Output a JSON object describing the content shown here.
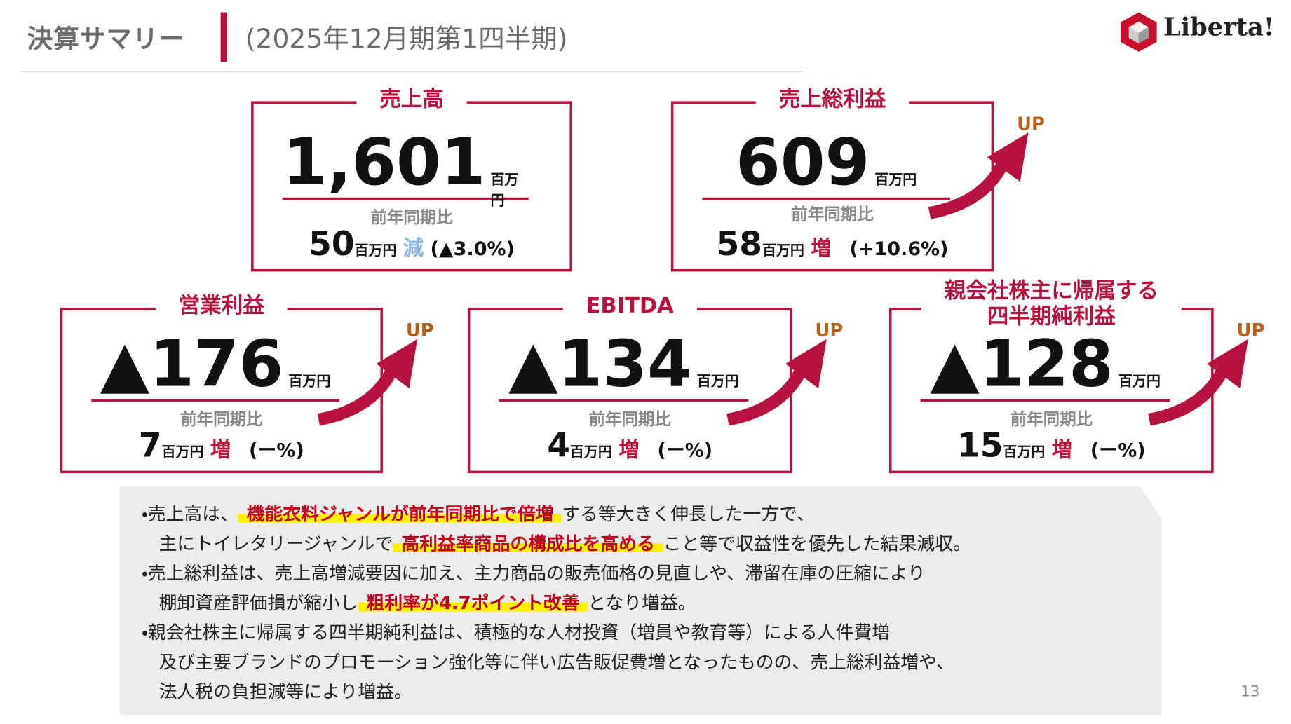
{
  "header": {
    "title": "決算サマリー",
    "subtitle": "(2025年12月期第1四半期)",
    "logo": "Liberta!"
  },
  "cards": [
    {
      "label": "売上高",
      "value": "1,601",
      "unit": "百万円",
      "compare_label": "前年同期比",
      "change": "50",
      "change_unit": "百万円",
      "direction": "減",
      "rate": "(▲3.0%)"
    },
    {
      "label": "売上総利益",
      "value": "609",
      "unit": "百万円",
      "compare_label": "前年同期比",
      "change": "58",
      "change_unit": "百万円",
      "direction": "増",
      "rate": "(+10.6%)",
      "badge": "UP"
    },
    {
      "label": "営業利益",
      "value": "▲176",
      "unit": "百万円",
      "compare_label": "前年同期比",
      "change": "7",
      "change_unit": "百万円",
      "direction": "増",
      "rate": "(ー%)",
      "badge": "UP"
    },
    {
      "label": "EBITDA",
      "value": "▲134",
      "unit": "百万円",
      "compare_label": "前年同期比",
      "change": "4",
      "change_unit": "百万円",
      "direction": "増",
      "rate": "(ー%)",
      "badge": "UP"
    },
    {
      "label": [
        "親会社株主に帰属する",
        "四半期純利益"
      ],
      "value": "▲128",
      "unit": "百万円",
      "compare_label": "前年同期比",
      "change": "15",
      "change_unit": "百万円",
      "direction": "増",
      "rate": "(ー%)",
      "badge": "UP"
    }
  ],
  "notes": [
    [
      [
        {
          "text": "・売上高は、"
        },
        {
          "text": "機能衣料ジャンルが前年同期比で倍増",
          "highlight": true
        },
        {
          "text": "する等大きく伸長した一方で、"
        }
      ],
      [
        {
          "text": "主にトイレタリージャンルで"
        },
        {
          "text": "高利益率商品の構成比を高める",
          "highlight": true
        },
        {
          "text": "こと等で収益性を優先した結果減収。"
        }
      ]
    ],
    [
      [
        {
          "text": "・売上総利益は、売上高増減要因に加え、主力商品の販売価格の見直しや、滞留在庫の圧縮により"
        }
      ],
      [
        {
          "text": "棚卸資産評価損が縮小し"
        },
        {
          "text": "粗利率が4.7ポイント改善",
          "highlight": true
        },
        {
          "text": "となり増益。"
        }
      ]
    ],
    [
      [
        {
          "text": "・親会社株主に帰属する四半期純利益は、積極的な人材投資（増員や教育等）による人件費増"
        }
      ],
      [
        {
          "text": "及び主要ブランドのプロモーション強化等に伴い広告販促費増となったものの、売上総利益増や、"
        }
      ],
      [
        {
          "text": "法人税の負担減等により増益。"
        }
      ]
    ]
  ],
  "page_number": "13"
}
